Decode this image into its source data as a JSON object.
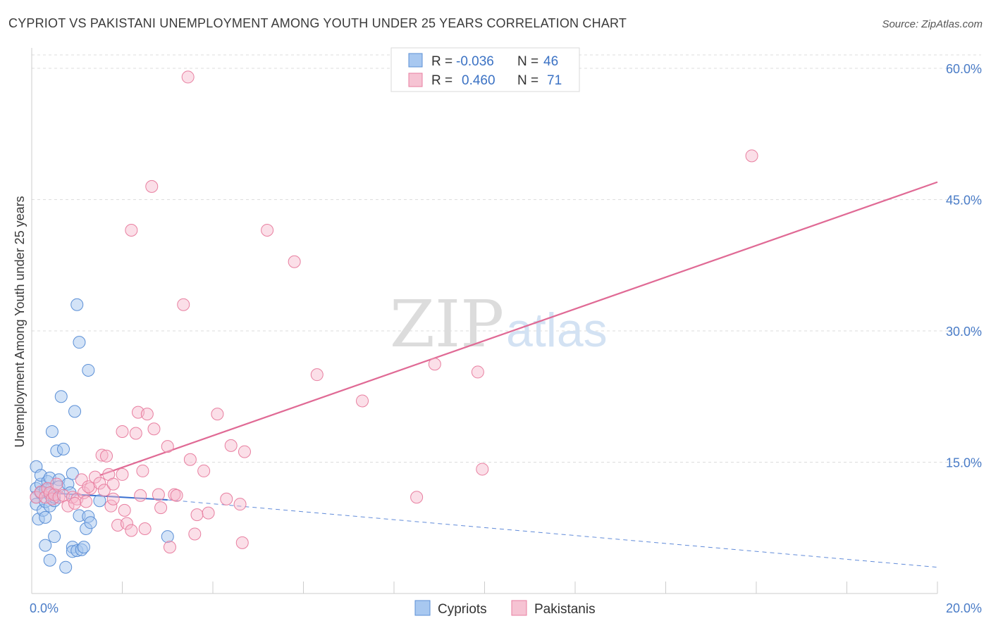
{
  "title": "CYPRIOT VS PAKISTANI UNEMPLOYMENT AMONG YOUTH UNDER 25 YEARS CORRELATION CHART",
  "source": "Source: ZipAtlas.com",
  "watermark": {
    "zip": "ZIP",
    "atlas": "atlas"
  },
  "legend_box": {
    "rows": [
      {
        "r_label": "R =",
        "r_value": "-0.036",
        "n_label": "N =",
        "n_value": "46"
      },
      {
        "r_label": "R =",
        "r_value": "0.460",
        "n_label": "N =",
        "n_value": "71"
      }
    ]
  },
  "bottom_legend": {
    "items": [
      "Cypriots",
      "Pakistanis"
    ]
  },
  "colors": {
    "blue_fill": "#a8c8f0",
    "blue_stroke": "#5b8fd6",
    "blue_line": "#3a6fd0",
    "pink_fill": "#f6b8cb",
    "pink_stroke": "#e87fa0",
    "pink_line": "#e06a95",
    "grid": "#dddddd",
    "tick_text": "#4a7cc7"
  },
  "chart_data": {
    "type": "scatter",
    "title": "CYPRIOT VS PAKISTANI UNEMPLOYMENT AMONG YOUTH UNDER 25 YEARS CORRELATION CHART",
    "xlabel": "",
    "ylabel": "Unemployment Among Youth under 25 years",
    "xlim": [
      0,
      20
    ],
    "ylim": [
      0,
      60
    ],
    "x_tick_labels": [
      "0.0%",
      "20.0%"
    ],
    "y_ticks": [
      15,
      30,
      45,
      60
    ],
    "y_tick_labels": [
      "15.0%",
      "30.0%",
      "45.0%",
      "60.0%"
    ],
    "grid": true,
    "series": [
      {
        "name": "Cypriots",
        "r": -0.036,
        "n": 46,
        "trend": {
          "x0": 0,
          "y0": 11.6,
          "x1": 3.0,
          "y1": 10.7,
          "dashed_to_x": 20,
          "dashed_to_y": 3.0
        },
        "points": [
          [
            0.1,
            12.0
          ],
          [
            0.1,
            11.0
          ],
          [
            0.1,
            14.5
          ],
          [
            0.1,
            10.2
          ],
          [
            0.15,
            8.5
          ],
          [
            0.2,
            12.5
          ],
          [
            0.2,
            13.5
          ],
          [
            0.2,
            11.5
          ],
          [
            0.25,
            9.5
          ],
          [
            0.3,
            10.5
          ],
          [
            0.3,
            11.8
          ],
          [
            0.3,
            8.7
          ],
          [
            0.3,
            5.5
          ],
          [
            0.35,
            12.8
          ],
          [
            0.4,
            10.0
          ],
          [
            0.4,
            13.2
          ],
          [
            0.4,
            11.3
          ],
          [
            0.45,
            18.5
          ],
          [
            0.4,
            3.8
          ],
          [
            0.5,
            6.5
          ],
          [
            0.5,
            10.6
          ],
          [
            0.5,
            11.0
          ],
          [
            0.55,
            16.3
          ],
          [
            0.6,
            13.0
          ],
          [
            0.6,
            12.2
          ],
          [
            0.65,
            22.5
          ],
          [
            0.7,
            16.5
          ],
          [
            0.75,
            3.0
          ],
          [
            0.8,
            12.5
          ],
          [
            0.85,
            11.5
          ],
          [
            0.9,
            5.3
          ],
          [
            0.9,
            13.7
          ],
          [
            0.9,
            4.8
          ],
          [
            0.95,
            20.8
          ],
          [
            1.0,
            4.9
          ],
          [
            1.05,
            8.9
          ],
          [
            1.1,
            5.0
          ],
          [
            1.15,
            5.3
          ],
          [
            1.2,
            7.4
          ],
          [
            1.25,
            8.8
          ],
          [
            1.3,
            8.1
          ],
          [
            1.0,
            33.0
          ],
          [
            1.05,
            28.7
          ],
          [
            1.25,
            25.5
          ],
          [
            1.5,
            10.6
          ],
          [
            3.0,
            6.5
          ]
        ]
      },
      {
        "name": "Pakistanis",
        "r": 0.46,
        "n": 71,
        "trend": {
          "x0": 1.5,
          "y0": 13.5,
          "x1": 20,
          "y1": 47.0
        },
        "points": [
          [
            0.1,
            11.0
          ],
          [
            0.2,
            11.6
          ],
          [
            0.3,
            11.0
          ],
          [
            0.35,
            12.0
          ],
          [
            0.4,
            11.5
          ],
          [
            0.45,
            10.8
          ],
          [
            0.5,
            11.3
          ],
          [
            0.55,
            12.5
          ],
          [
            0.6,
            11.0
          ],
          [
            0.7,
            11.2
          ],
          [
            0.8,
            10.0
          ],
          [
            0.9,
            11.0
          ],
          [
            1.0,
            10.8
          ],
          [
            1.1,
            13.0
          ],
          [
            1.15,
            11.5
          ],
          [
            1.2,
            10.5
          ],
          [
            1.3,
            12.0
          ],
          [
            1.4,
            13.3
          ],
          [
            1.5,
            12.6
          ],
          [
            1.6,
            11.8
          ],
          [
            1.7,
            13.6
          ],
          [
            1.75,
            10.0
          ],
          [
            1.8,
            12.5
          ],
          [
            1.55,
            15.8
          ],
          [
            1.65,
            15.7
          ],
          [
            1.8,
            10.8
          ],
          [
            1.9,
            7.8
          ],
          [
            2.0,
            13.6
          ],
          [
            2.0,
            18.5
          ],
          [
            2.05,
            9.5
          ],
          [
            2.1,
            8.0
          ],
          [
            2.2,
            7.2
          ],
          [
            2.2,
            41.5
          ],
          [
            2.3,
            18.3
          ],
          [
            2.35,
            20.7
          ],
          [
            2.4,
            11.2
          ],
          [
            2.45,
            14.0
          ],
          [
            2.5,
            7.4
          ],
          [
            2.55,
            20.5
          ],
          [
            2.65,
            46.5
          ],
          [
            2.7,
            18.8
          ],
          [
            2.8,
            11.3
          ],
          [
            2.85,
            9.8
          ],
          [
            3.0,
            16.8
          ],
          [
            3.05,
            5.3
          ],
          [
            3.15,
            11.3
          ],
          [
            3.2,
            11.2
          ],
          [
            3.35,
            33.0
          ],
          [
            3.45,
            59.0
          ],
          [
            3.5,
            15.3
          ],
          [
            3.6,
            6.8
          ],
          [
            3.65,
            9.0
          ],
          [
            3.8,
            14.0
          ],
          [
            3.9,
            9.2
          ],
          [
            4.1,
            20.5
          ],
          [
            4.3,
            10.8
          ],
          [
            4.4,
            16.9
          ],
          [
            4.6,
            10.2
          ],
          [
            4.65,
            5.8
          ],
          [
            4.7,
            16.2
          ],
          [
            5.2,
            41.5
          ],
          [
            5.8,
            37.9
          ],
          [
            6.3,
            25.0
          ],
          [
            7.3,
            22.0
          ],
          [
            8.5,
            11.0
          ],
          [
            8.9,
            26.2
          ],
          [
            9.85,
            25.3
          ],
          [
            9.95,
            14.2
          ],
          [
            15.9,
            50.0
          ],
          [
            1.25,
            12.2
          ],
          [
            0.95,
            10.3
          ]
        ]
      }
    ]
  }
}
